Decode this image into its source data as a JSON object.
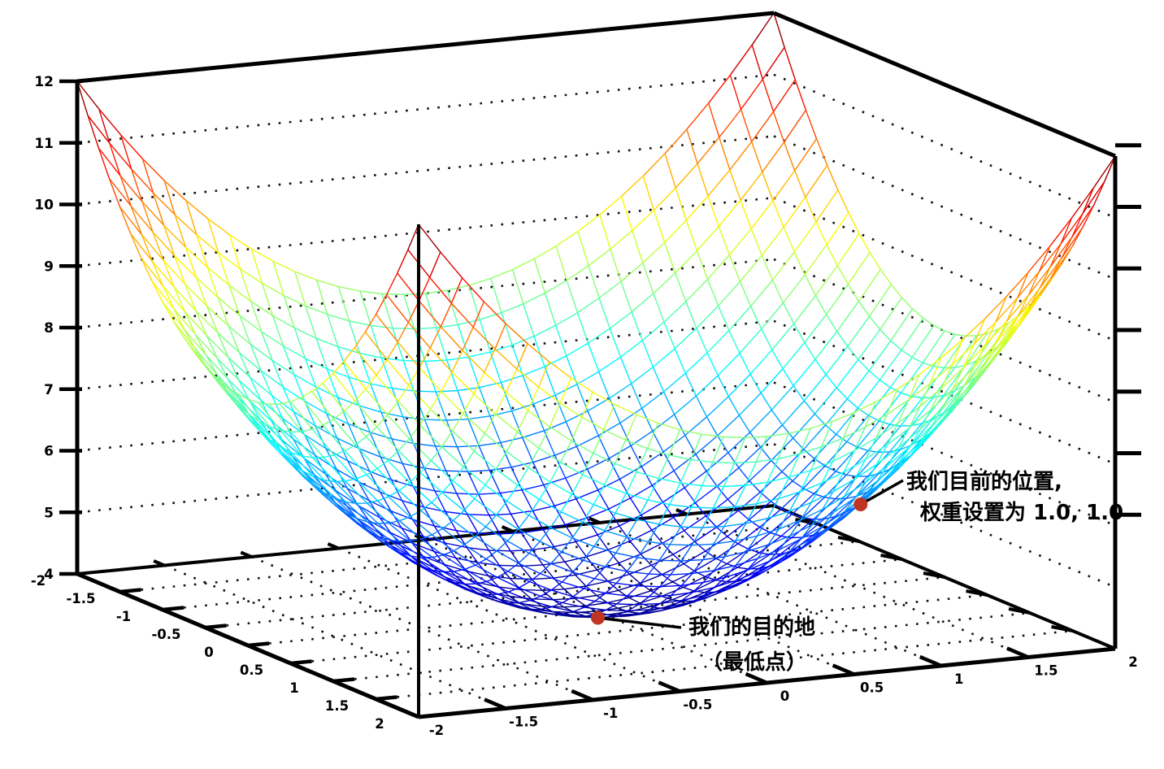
{
  "chart_data": {
    "type": "surface",
    "title": "",
    "surface": {
      "formula": "z = x^2 + y^2 + 4",
      "x_range": [
        -2,
        2
      ],
      "y_range": [
        -2,
        2
      ],
      "z_range": [
        4,
        12
      ],
      "mesh_divisions": 32,
      "colormap": "jet",
      "render": "wireframe"
    },
    "axes": {
      "x": {
        "ticks": [
          -2,
          -1.5,
          -1,
          -0.5,
          0,
          0.5,
          1,
          1.5,
          2
        ],
        "tick_labels": [
          "-2",
          "-1.5",
          "-1",
          "-0.5",
          "0",
          "0.5",
          "1",
          "1.5",
          "2"
        ]
      },
      "y": {
        "ticks": [
          -2,
          -1.5,
          -1,
          -0.5,
          0,
          0.5,
          1,
          1.5,
          2
        ],
        "tick_labels": [
          "-2",
          "-1.5",
          "-1",
          "-0.5",
          "0",
          "0.5",
          "1",
          "1.5",
          "2"
        ]
      },
      "z": {
        "ticks": [
          4,
          5,
          6,
          7,
          8,
          9,
          10,
          11,
          12
        ],
        "tick_labels": [
          "4",
          "5",
          "6",
          "7",
          "8",
          "9",
          "10",
          "11",
          "12"
        ]
      }
    },
    "grid": {
      "style": "dotted",
      "floor_step": 0.5,
      "wall_z_lines": [
        5,
        6,
        7,
        8,
        9,
        10,
        11
      ]
    },
    "annotations": [
      {
        "id": "current-position",
        "point": {
          "x": 1.0,
          "y": 1.0,
          "z": 6.0
        },
        "marker_color": "#c03522",
        "text_lines": [
          "我们目前的位置,",
          "权重设置为 1.0, 1.0"
        ]
      },
      {
        "id": "destination",
        "point": {
          "x": 0.0,
          "y": 0.0,
          "z": 4.0
        },
        "marker_color": "#c03522",
        "text_lines": [
          "我们的目的地",
          "（最低点）"
        ]
      }
    ],
    "colors": {
      "axis": "#000000",
      "grid_dots": "#111111",
      "annotation_text": "#000000"
    }
  }
}
